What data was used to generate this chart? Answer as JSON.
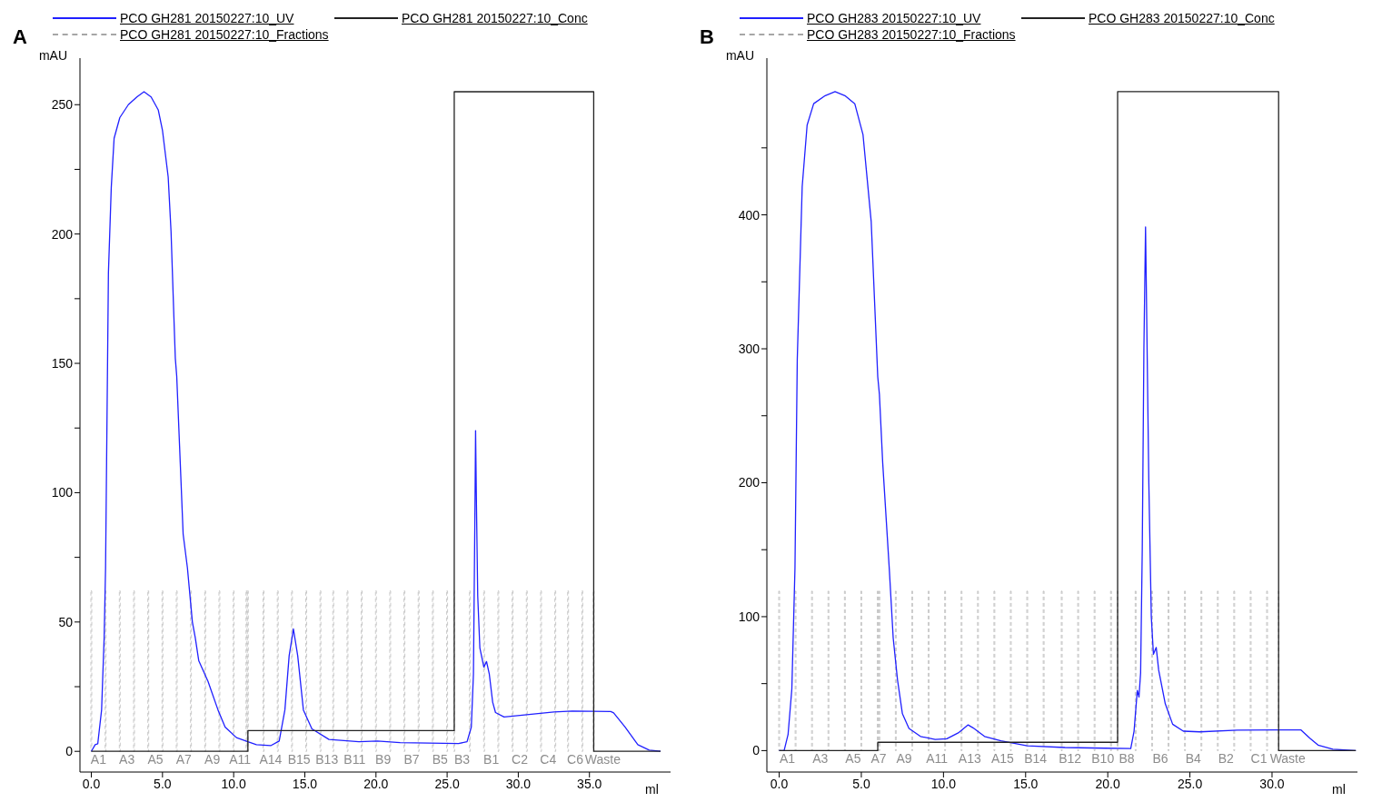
{
  "chart_data": [
    {
      "type": "line",
      "title": "A",
      "xlabel": "ml",
      "ylabel": "mAU",
      "legend": "top",
      "grid": false,
      "xlim": [
        -0.8,
        40.7
      ],
      "xticks": [
        {
          "value": 0,
          "label": "0.0"
        },
        {
          "value": 5,
          "label": "5.0"
        },
        {
          "value": 10,
          "label": "10.0"
        },
        {
          "value": 15,
          "label": "15.0"
        },
        {
          "value": 20,
          "label": "20.0"
        },
        {
          "value": 25,
          "label": "25.0"
        },
        {
          "value": 30,
          "label": "30.0"
        },
        {
          "value": 35,
          "label": "35.0"
        }
      ],
      "ylim": [
        -8,
        268
      ],
      "yticks": [
        0,
        {
          "value": 25,
          "label": null
        },
        50,
        {
          "value": 75,
          "label": null
        },
        100,
        {
          "value": 125,
          "label": null
        },
        150,
        {
          "value": 175,
          "label": null
        },
        200,
        {
          "value": 225,
          "label": null
        },
        250
      ],
      "series": [
        {
          "name": "PCO GH281 20150227:10_UV",
          "color": "#2020ff",
          "x": [
            0,
            0.27,
            0.45,
            0.72,
            0.9,
            1.0,
            1.2,
            1.4,
            1.6,
            2.0,
            2.6,
            3.2,
            3.7,
            4.2,
            4.7,
            5.0,
            5.4,
            5.6,
            5.8,
            5.9,
            6.0,
            6.2,
            6.45,
            6.75,
            7.1,
            7.3,
            7.55,
            8.2,
            8.9,
            9.4,
            10.2,
            11.0,
            11.6,
            12.6,
            13.2,
            13.6,
            13.9,
            14.2,
            14.5,
            14.9,
            15.5,
            16.7,
            18.8,
            20.1,
            21.7,
            25.8,
            26.4,
            26.7,
            26.85,
            26.95,
            27.0,
            27.05,
            27.15,
            27.3,
            27.58,
            27.77,
            27.96,
            28.2,
            28.4,
            29.0,
            30.6,
            32.5,
            33.8,
            36.5,
            36.7,
            37.5,
            38.4,
            39.2,
            40.0
          ],
          "values": [
            0,
            2.6,
            2.9,
            16,
            44,
            71,
            185,
            218,
            237,
            245,
            250,
            253,
            255,
            253,
            248,
            240,
            222,
            201,
            168,
            152,
            145,
            118,
            84,
            71,
            50,
            44,
            35,
            27,
            16,
            9.4,
            5.3,
            3.7,
            2.6,
            2.2,
            4,
            16,
            37,
            47.3,
            37,
            16,
            8.7,
            4.6,
            3.7,
            4,
            3.4,
            3,
            3.7,
            9.4,
            30,
            90,
            124,
            100,
            60,
            40,
            32.6,
            34.7,
            30,
            19,
            15,
            13.3,
            14.2,
            15.2,
            15.6,
            15.4,
            14.9,
            9.4,
            2.6,
            0.5,
            0
          ]
        },
        {
          "name": "PCO GH281 20150227:10_Conc",
          "color": "#222222",
          "type": "step",
          "x": [
            0,
            11.0,
            25.5,
            35.3,
            40.0
          ],
          "values": [
            0,
            8,
            255,
            0,
            0
          ]
        },
        {
          "name": "PCO GH281 20150227:10_Fractions",
          "color": "#a6a6a6",
          "type": "bar",
          "line_style": "dashed",
          "x": [
            0,
            1,
            2,
            3,
            4,
            5,
            6,
            7,
            8,
            9,
            10,
            10.9,
            11.0,
            12.1,
            13.1,
            14.1,
            15.1,
            16.1,
            17.0,
            18.0,
            19.0,
            20.0,
            21.0,
            22.0,
            23.0,
            24.0,
            25.0,
            25.5,
            26.6,
            27.6,
            28.6,
            29.6,
            30.6,
            31.6,
            32.6,
            33.5,
            34.5,
            35.3
          ],
          "values": [
            62,
            62,
            62,
            62,
            62,
            62,
            62,
            62,
            62,
            62,
            62,
            62,
            62,
            62,
            62,
            62,
            62,
            62,
            62,
            62,
            62,
            62,
            62,
            62,
            62,
            62,
            62,
            62,
            62,
            62,
            62,
            62,
            62,
            62,
            62,
            62,
            62,
            62
          ],
          "value_labels": [
            "A1",
            null,
            "A3",
            null,
            "A5",
            null,
            "A7",
            null,
            "A9",
            null,
            "A11",
            null,
            null,
            "A14",
            null,
            "B15",
            null,
            "B13",
            null,
            "B11",
            null,
            "B9",
            null,
            "B7",
            null,
            "B5",
            null,
            "B3",
            null,
            "B1",
            null,
            "C2",
            null,
            "C4",
            null,
            "C6",
            null,
            "Waste"
          ]
        }
      ]
    },
    {
      "type": "line",
      "title": "B",
      "xlabel": "ml",
      "ylabel": "mAU",
      "legend": "top",
      "grid": false,
      "xlim": [
        -0.75,
        35.2
      ],
      "xticks": [
        {
          "value": 0,
          "label": "0.0"
        },
        {
          "value": 5,
          "label": "5.0"
        },
        {
          "value": 10,
          "label": "10.0"
        },
        {
          "value": 15,
          "label": "15.0"
        },
        {
          "value": 20,
          "label": "20.0"
        },
        {
          "value": 25,
          "label": "25.0"
        },
        {
          "value": 30,
          "label": "30.0"
        }
      ],
      "ylim": [
        -16,
        517
      ],
      "yticks": [
        0,
        {
          "value": 50,
          "label": null
        },
        100,
        {
          "value": 150,
          "label": null
        },
        200,
        {
          "value": 250,
          "label": null
        },
        300,
        {
          "value": 350,
          "label": null
        },
        400,
        {
          "value": 450,
          "label": null
        }
      ],
      "series": [
        {
          "name": "PCO GH283 20150227:10_UV",
          "color": "#2020ff",
          "x": [
            0,
            0.3,
            0.54,
            0.77,
            0.96,
            1.1,
            1.4,
            1.7,
            2.1,
            2.8,
            3.4,
            4.0,
            4.6,
            5.1,
            5.6,
            5.8,
            6.0,
            6.1,
            6.3,
            6.7,
            6.94,
            7.2,
            7.5,
            7.9,
            8.6,
            9.5,
            10.2,
            10.9,
            11.5,
            11.8,
            12.5,
            13.5,
            15.1,
            17.4,
            19.8,
            21.4,
            21.6,
            21.8,
            21.9,
            22.0,
            22.1,
            22.2,
            22.3,
            22.5,
            22.65,
            22.78,
            22.95,
            23.1,
            23.5,
            23.95,
            24.6,
            25.6,
            27.9,
            30.2,
            31.75,
            32.3,
            32.8,
            33.7,
            35.1
          ],
          "values": [
            0,
            0,
            12,
            46,
            136,
            292,
            421,
            467,
            483,
            489,
            492,
            489,
            483,
            460,
            395,
            337,
            279,
            266,
            215,
            136,
            84,
            53,
            27.5,
            16.6,
            10.6,
            8.3,
            8.8,
            13.2,
            19.2,
            17,
            10.6,
            7.3,
            3.6,
            2.3,
            1.8,
            1.6,
            14.5,
            45,
            40,
            58,
            150,
            300,
            391,
            200,
            100,
            72,
            77,
            60,
            35,
            19.7,
            14.5,
            14,
            15.3,
            15.5,
            15.5,
            9.3,
            4.1,
            1,
            0
          ]
        },
        {
          "name": "PCO GH283 20150227:10_Conc",
          "color": "#222222",
          "type": "step",
          "x": [
            0,
            6.0,
            20.6,
            30.4,
            35.1
          ],
          "values": [
            0,
            6.2,
            492,
            0,
            0
          ]
        },
        {
          "name": "PCO GH283 20150227:10_Fractions",
          "color": "#a6a6a6",
          "type": "bar",
          "line_style": "dashed",
          "x": [
            0,
            1,
            2,
            3,
            4,
            5,
            6.0,
            6.1,
            7.1,
            8.1,
            9.1,
            10.1,
            11.1,
            12.1,
            13.1,
            14.1,
            15.1,
            16.1,
            17.2,
            18.2,
            19.2,
            20.2,
            20.6,
            21.7,
            22.7,
            23.7,
            24.7,
            25.7,
            26.7,
            27.7,
            28.7,
            29.7,
            30.4
          ],
          "values": [
            119,
            119,
            119,
            119,
            119,
            119,
            119,
            119,
            119,
            119,
            119,
            119,
            119,
            119,
            119,
            119,
            119,
            119,
            119,
            119,
            119,
            119,
            119,
            119,
            119,
            119,
            119,
            119,
            119,
            119,
            119,
            119,
            119
          ],
          "value_labels": [
            "A1",
            null,
            "A3",
            null,
            "A5",
            null,
            "A7",
            null,
            "A9",
            null,
            "A11",
            null,
            "A13",
            null,
            "A15",
            null,
            "B14",
            null,
            "B12",
            null,
            "B10",
            null,
            "B8",
            null,
            "B6",
            null,
            "B4",
            null,
            "B2",
            null,
            "C1",
            null,
            "Waste"
          ]
        }
      ]
    }
  ]
}
